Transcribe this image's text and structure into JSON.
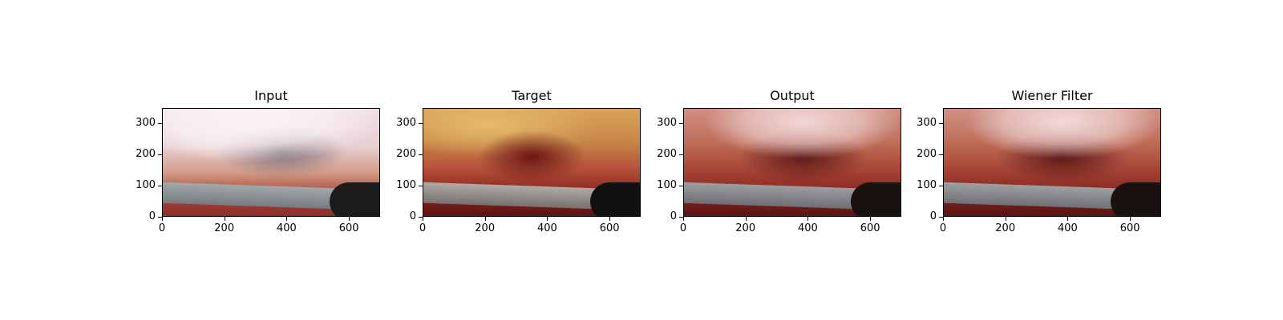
{
  "panels": [
    {
      "title": "Input"
    },
    {
      "title": "Target"
    },
    {
      "title": "Output"
    },
    {
      "title": "Wiener Filter"
    }
  ],
  "axes": {
    "x_ticks": [
      "0",
      "200",
      "400",
      "600"
    ],
    "y_ticks": [
      "0",
      "100",
      "200",
      "300"
    ],
    "x_range": [
      0,
      700
    ],
    "y_range": [
      350,
      0
    ]
  },
  "colors": {
    "input_haze": "#efdbe6",
    "tissue_red": "#9b2a22",
    "tissue_yellow": "#d9a45a",
    "instrument_gray": "#8a8f92"
  }
}
